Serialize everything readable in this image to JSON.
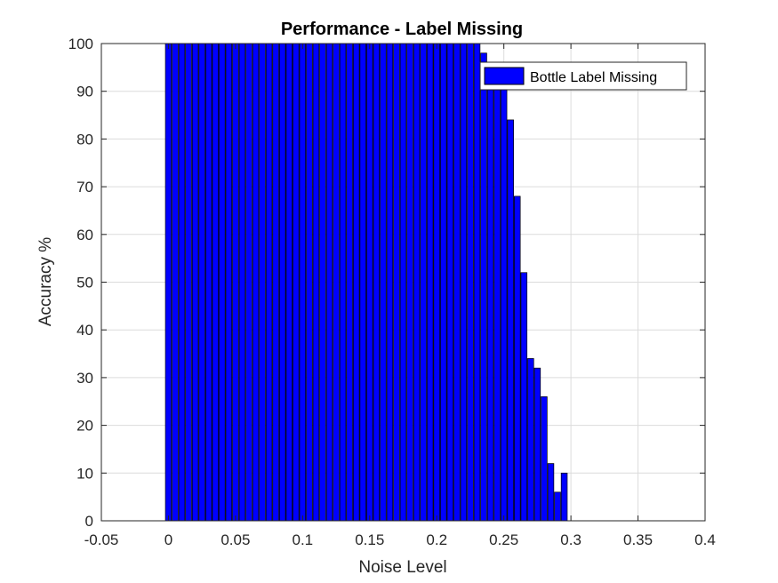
{
  "chart_data": {
    "type": "bar",
    "title": "Performance - Label Missing",
    "xlabel": "Noise Level",
    "ylabel": "Accuracy %",
    "xlim": [
      -0.05,
      0.4
    ],
    "ylim": [
      0,
      100
    ],
    "grid": true,
    "legend_position": "top-right",
    "x_tick_labels": [
      "-0.05",
      "0",
      "0.05",
      "0.1",
      "0.15",
      "0.2",
      "0.25",
      "0.3",
      "0.35",
      "0.4"
    ],
    "y_tick_labels": [
      "0",
      "10",
      "20",
      "30",
      "40",
      "50",
      "60",
      "70",
      "80",
      "90",
      "100"
    ],
    "series": [
      {
        "name": "Bottle Label Missing",
        "color": "#0000ff",
        "x": [
          0,
          0.005,
          0.01,
          0.015,
          0.02,
          0.025,
          0.03,
          0.035,
          0.04,
          0.045,
          0.05,
          0.055,
          0.06,
          0.065,
          0.07,
          0.075,
          0.08,
          0.085,
          0.09,
          0.095,
          0.1,
          0.105,
          0.11,
          0.115,
          0.12,
          0.125,
          0.13,
          0.135,
          0.14,
          0.145,
          0.15,
          0.155,
          0.16,
          0.165,
          0.17,
          0.175,
          0.18,
          0.185,
          0.19,
          0.195,
          0.2,
          0.205,
          0.21,
          0.215,
          0.22,
          0.225,
          0.23,
          0.235,
          0.24,
          0.245,
          0.25,
          0.255,
          0.26,
          0.265,
          0.27,
          0.275,
          0.28,
          0.285,
          0.29,
          0.295,
          0.3,
          0.305,
          0.31,
          0.315,
          0.32,
          0.325,
          0.33,
          0.335,
          0.34,
          0.345,
          0.35
        ],
        "values": [
          100,
          100,
          100,
          100,
          100,
          100,
          100,
          100,
          100,
          100,
          100,
          100,
          100,
          100,
          100,
          100,
          100,
          100,
          100,
          100,
          100,
          100,
          100,
          100,
          100,
          100,
          100,
          100,
          100,
          100,
          100,
          100,
          100,
          100,
          100,
          100,
          100,
          100,
          100,
          100,
          100,
          100,
          100,
          100,
          100,
          100,
          100,
          98,
          96,
          94,
          92,
          84,
          68,
          52,
          34,
          32,
          26,
          12,
          6,
          10,
          0,
          0,
          0,
          0,
          0,
          0,
          0,
          0,
          0,
          0,
          0
        ]
      }
    ]
  }
}
